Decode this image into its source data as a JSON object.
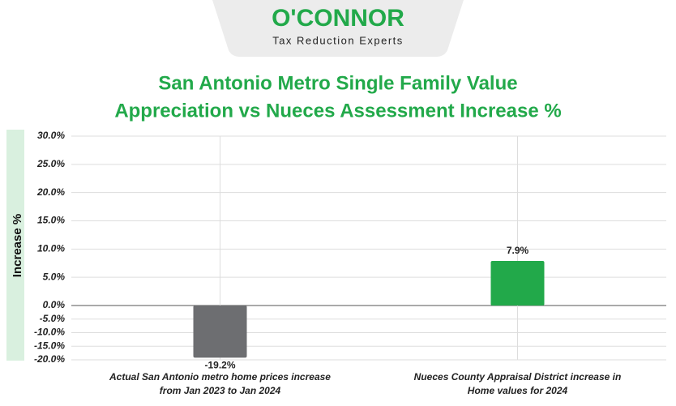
{
  "brand": {
    "name": "O'CONNOR",
    "tagline": "Tax Reduction Experts"
  },
  "chart_data": {
    "type": "bar",
    "title": [
      "San Antonio Metro Single Family Value",
      "Appreciation vs Nueces Assessment Increase %"
    ],
    "y_label": "Increase %",
    "categories": [
      [
        "Actual San Antonio metro home prices increase",
        "from Jan 2023 to Jan 2024"
      ],
      [
        "Nueces County Appraisal District increase in",
        "Home values for 2024"
      ]
    ],
    "values": [
      -19.2,
      7.9
    ],
    "value_labels": [
      "-19.2%",
      "7.9%"
    ],
    "colors": [
      "#6d6e71",
      "#22a94a"
    ],
    "ylim": [
      -20,
      30
    ],
    "yticks": [
      {
        "value": 30,
        "label": "30.0%"
      },
      {
        "value": 25,
        "label": "25.0%"
      },
      {
        "value": 20,
        "label": "20.0%"
      },
      {
        "value": 15,
        "label": "15.0%"
      },
      {
        "value": 10,
        "label": "10.0%"
      },
      {
        "value": 5,
        "label": "5.0%"
      },
      {
        "value": 0,
        "label": "0.0%"
      },
      {
        "value": -5,
        "label": "-5.0%"
      },
      {
        "value": -10,
        "label": "-10.0%"
      },
      {
        "value": -15,
        "label": "-15.0%"
      },
      {
        "value": -20,
        "label": "-20.0%"
      }
    ],
    "grid": true
  }
}
